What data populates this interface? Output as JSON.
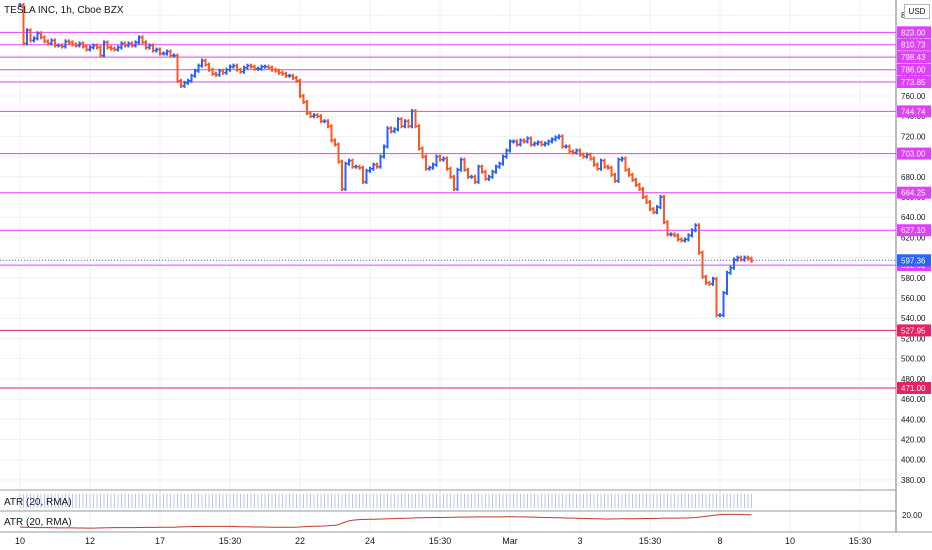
{
  "chart_data": {
    "type": "bar",
    "title": "TESLA INC, 1h, Cboe BZX",
    "currency": "USD",
    "ylim": [
      370,
      855
    ],
    "y_ticks": [
      380,
      400,
      420,
      440,
      460,
      480,
      500,
      520,
      540,
      560,
      580,
      600,
      620,
      640,
      660,
      680,
      700,
      720,
      740,
      760,
      780,
      800,
      820,
      840
    ],
    "x_ticks": [
      "10",
      "12",
      "17",
      "15:30",
      "22",
      "24",
      "15:30",
      "Mar",
      "3",
      "15:30",
      "8",
      "10",
      "15:30"
    ],
    "x_tick_index": [
      0,
      20,
      40,
      60,
      80,
      100,
      120,
      140,
      160,
      180,
      200,
      220,
      240
    ],
    "horizontal_levels": [
      {
        "value": 823.0,
        "label": "823.00",
        "color": "#e040fb"
      },
      {
        "value": 810.73,
        "label": "810.73",
        "color": "#e040fb"
      },
      {
        "value": 798.43,
        "label": "798.43",
        "color": "#e040fb"
      },
      {
        "value": 786.0,
        "label": "786.00",
        "color": "#e040fb"
      },
      {
        "value": 773.85,
        "label": "773.85",
        "color": "#e040fb"
      },
      {
        "value": 744.74,
        "label": "744.74",
        "color": "#e040fb"
      },
      {
        "value": 703.0,
        "label": "703.00",
        "color": "#e040fb"
      },
      {
        "value": 664.25,
        "label": "664.25",
        "color": "#e040fb"
      },
      {
        "value": 627.1,
        "label": "627.10",
        "color": "#e040fb"
      },
      {
        "value": 592.61,
        "label": "592.61",
        "color": "#e040fb"
      },
      {
        "value": 527.95,
        "label": "527.95",
        "color": "#e91e63"
      },
      {
        "value": 471.0,
        "label": "471.00",
        "color": "#e91e63"
      }
    ],
    "last_price": {
      "value": 597.36,
      "label": "597.36",
      "color": "#2962ff"
    },
    "colors": {
      "up": "#2962ff",
      "down": "#ff5722"
    },
    "series": [
      {
        "name": "close",
        "values": [
          850,
          812,
          825,
          815,
          817,
          822,
          818,
          814,
          812,
          815,
          810,
          810,
          809,
          814,
          813,
          811,
          810,
          812,
          809,
          806,
          808,
          810,
          808,
          800,
          813,
          808,
          807,
          806,
          808,
          812,
          810,
          812,
          810,
          813,
          818,
          813,
          808,
          810,
          805,
          806,
          802,
          802,
          804,
          800,
          800,
          775,
          770,
          773,
          775,
          780,
          785,
          790,
          795,
          791,
          786,
          782,
          781,
          785,
          783,
          786,
          789,
          790,
          786,
          784,
          788,
          790,
          789,
          787,
          787,
          789,
          789,
          788,
          786,
          785,
          783,
          782,
          780,
          780,
          778,
          775,
          760,
          754,
          743,
          740,
          741,
          740,
          735,
          735,
          730,
          716,
          712,
          695,
          668,
          693,
          696,
          690,
          690,
          689,
          675,
          686,
          688,
          692,
          690,
          700,
          710,
          728,
          725,
          727,
          737,
          730,
          735,
          730,
          745,
          730,
          708,
          700,
          688,
          689,
          692,
          700,
          697,
          698,
          688,
          680,
          668,
          687,
          697,
          687,
          680,
          680,
          675,
          690,
          685,
          678,
          680,
          685,
          690,
          693,
          700,
          706,
          715,
          715,
          712,
          716,
          715,
          718,
          712,
          713,
          714,
          712,
          713,
          715,
          717,
          719,
          720,
          710,
          710,
          705,
          704,
          706,
          702,
          700,
          702,
          698,
          692,
          688,
          696,
          690,
          689,
          682,
          676,
          697,
          698,
          687,
          682,
          677,
          672,
          668,
          660,
          655,
          648,
          645,
          650,
          660,
          635,
          623,
          623,
          622,
          618,
          617,
          618,
          622,
          627,
          632,
          605,
          581,
          575,
          574,
          579,
          543,
          543,
          565,
          585,
          590,
          598,
          600,
          598,
          600,
          599,
          597
        ]
      }
    ],
    "panes": [
      {
        "name": "ATR (20, RMA)",
        "style": "histogram",
        "values": [
          7,
          7,
          7,
          7,
          7,
          7,
          7,
          7,
          7,
          7,
          7,
          7,
          7,
          7,
          7,
          7,
          7,
          7,
          7,
          7,
          7,
          7,
          7,
          7,
          7,
          7,
          7,
          7,
          7,
          7,
          7,
          7,
          7,
          7,
          7,
          7,
          7,
          7,
          7,
          7,
          7,
          7,
          7,
          7,
          7,
          7,
          7,
          7,
          7,
          7,
          7,
          7,
          7,
          7,
          7,
          7,
          7,
          7,
          7,
          7,
          7,
          7,
          7,
          7,
          7,
          7,
          7,
          7,
          7,
          7,
          7,
          7,
          7,
          7,
          7,
          7,
          7,
          7,
          7,
          7,
          7,
          7,
          7,
          7,
          7,
          7,
          7,
          7,
          7,
          7,
          7,
          7,
          7,
          7,
          7,
          7,
          7,
          7,
          7,
          7,
          7,
          7,
          7,
          7,
          7,
          7,
          7,
          7,
          7,
          7,
          7,
          7,
          7,
          7,
          7,
          7,
          7,
          7,
          7,
          7,
          7,
          7,
          7,
          7,
          7,
          7,
          7,
          7,
          7,
          7,
          7,
          7,
          7,
          7,
          7,
          7,
          7,
          7,
          7,
          7,
          7,
          7,
          7,
          7,
          7,
          7,
          7,
          7,
          7,
          7,
          7,
          7,
          7,
          7,
          7,
          7,
          7,
          7,
          7,
          7,
          7,
          7,
          7,
          7,
          7,
          7,
          7,
          7,
          7,
          7,
          7,
          7,
          7,
          7,
          7,
          7,
          7,
          7,
          7,
          7,
          7,
          7,
          7,
          7,
          7,
          7,
          7,
          7,
          7,
          7,
          7,
          7,
          7,
          7,
          7,
          7,
          7,
          7,
          7,
          7,
          7,
          7,
          7,
          7,
          7,
          7,
          7,
          7,
          7,
          7,
          7,
          7,
          7,
          7,
          7,
          7,
          7,
          7,
          7,
          7
        ]
      },
      {
        "name": "ATR (20, RMA)",
        "style": "line",
        "value_label": "20.00",
        "values": [
          6.2,
          6.0,
          5.9,
          5.8,
          5.7,
          5.6,
          5.6,
          5.5,
          5.5,
          5.4,
          5.4,
          5.3,
          5.3,
          5.3,
          5.2,
          5.2,
          5.1,
          5.1,
          5.1,
          5.0,
          5.0,
          5.0,
          5.1,
          5.2,
          5.3,
          5.4,
          5.4,
          5.5,
          5.5,
          5.5,
          5.6,
          5.6,
          5.6,
          5.6,
          5.7,
          5.7,
          5.8,
          5.8,
          5.8,
          5.8,
          5.9,
          5.9,
          5.9,
          6.0,
          6.0,
          6.2,
          6.4,
          6.5,
          6.6,
          6.7,
          6.8,
          6.8,
          6.9,
          6.9,
          6.9,
          7.0,
          7.0,
          7.0,
          7.0,
          7.0,
          6.9,
          6.8,
          6.7,
          6.6,
          6.5,
          6.4,
          6.4,
          6.3,
          6.2,
          6.2,
          6.1,
          6.1,
          6.0,
          6.0,
          6.0,
          6.0,
          6.0,
          6.0,
          6.0,
          6.1,
          6.3,
          6.6,
          6.8,
          7.0,
          7.1,
          7.2,
          7.3,
          7.4,
          7.6,
          7.9,
          8.2,
          8.8,
          10.5,
          12.0,
          13.2,
          13.8,
          14.2,
          14.5,
          14.7,
          14.8,
          14.9,
          15.0,
          15.1,
          15.2,
          15.3,
          15.5,
          15.6,
          15.7,
          15.9,
          16.0,
          16.1,
          16.2,
          16.4,
          16.5,
          16.6,
          16.7,
          16.8,
          16.8,
          16.9,
          16.9,
          17.0,
          17.0,
          17.1,
          17.1,
          17.2,
          17.3,
          17.4,
          17.4,
          17.5,
          17.5,
          17.5,
          17.6,
          17.6,
          17.6,
          17.6,
          17.6,
          17.7,
          17.7,
          17.7,
          17.8,
          17.8,
          17.8,
          17.7,
          17.7,
          17.6,
          17.5,
          17.4,
          17.3,
          17.2,
          17.1,
          17.0,
          16.9,
          16.8,
          16.7,
          16.6,
          16.5,
          16.4,
          16.3,
          16.2,
          16.1,
          16.0,
          15.9,
          15.8,
          15.7,
          15.6,
          15.5,
          15.4,
          15.3,
          15.3,
          15.3,
          15.4,
          15.4,
          15.5,
          15.5,
          15.5,
          15.6,
          15.6,
          15.7,
          15.7,
          15.8,
          15.8,
          15.9,
          16.0,
          16.1,
          16.2,
          16.2,
          16.2,
          16.3,
          16.3,
          16.4,
          16.4,
          16.5,
          16.7,
          16.9,
          17.3,
          17.8,
          18.3,
          18.8,
          19.3,
          19.8,
          20.2,
          20.4,
          20.5,
          20.5,
          20.5,
          20.4,
          20.3,
          20.2,
          20.1,
          20.0,
          20.0,
          20.0,
          20.0
        ]
      }
    ]
  }
}
